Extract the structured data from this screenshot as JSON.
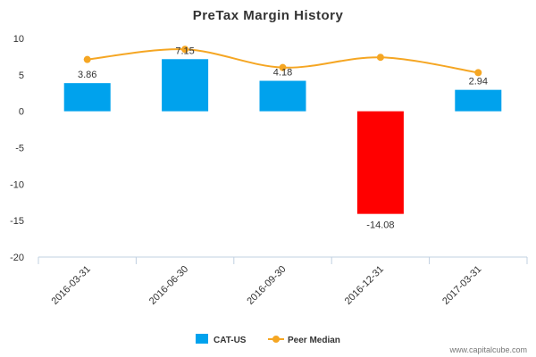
{
  "chart_data": {
    "type": "bar",
    "title": "PreTax Margin History",
    "categories": [
      "2016-03-31",
      "2016-06-30",
      "2016-09-30",
      "2016-12-31",
      "2017-03-31"
    ],
    "series": [
      {
        "name": "CAT-US",
        "type": "bar",
        "values": [
          3.86,
          7.15,
          4.18,
          -14.08,
          2.94
        ],
        "data_labels": [
          "3.86",
          "7.15",
          "4.18",
          "-14.08",
          "2.94"
        ],
        "color": "#00a2ed",
        "negative_color": "#ff0000"
      },
      {
        "name": "Peer Median",
        "type": "line",
        "values": [
          7.1,
          8.5,
          6.0,
          7.4,
          5.3
        ],
        "color": "#f5a623"
      }
    ],
    "ylim": [
      -20,
      10
    ],
    "yticks": [
      10,
      5,
      0,
      -5,
      -10,
      -15,
      -20
    ],
    "grid": false,
    "legend": "bottom-center"
  },
  "credit": "www.capitalcube.com"
}
